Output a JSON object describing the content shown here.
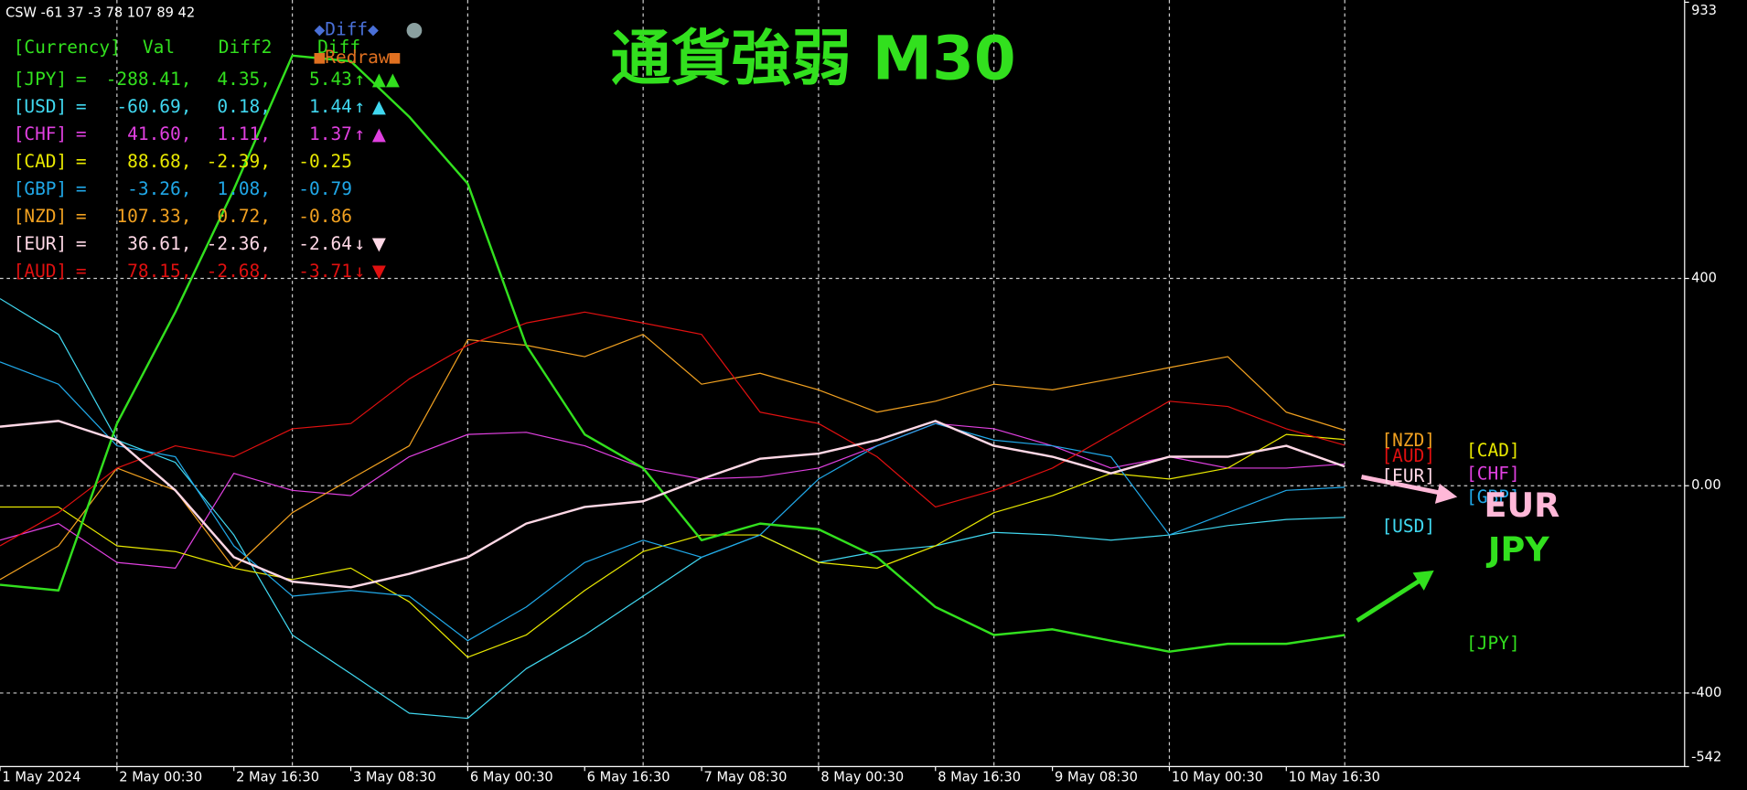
{
  "chart_data": {
    "type": "line",
    "title": "通貨強弱 M30",
    "x": [
      0,
      16,
      32,
      48,
      64,
      80,
      96,
      112,
      128,
      144,
      160,
      176,
      192,
      208,
      224,
      240,
      256,
      272,
      288,
      304,
      320,
      336,
      352,
      368
    ],
    "xlim": [
      0,
      461
    ],
    "xticks": [
      {
        "value": 0,
        "label": "1 May 2024"
      },
      {
        "value": 32,
        "label": "2 May 00:30"
      },
      {
        "value": 64,
        "label": "2 May 16:30"
      },
      {
        "value": 96,
        "label": "3 May 08:30"
      },
      {
        "value": 128,
        "label": "6 May 00:30"
      },
      {
        "value": 160,
        "label": "6 May 16:30"
      },
      {
        "value": 192,
        "label": "7 May 08:30"
      },
      {
        "value": 224,
        "label": "8 May 00:30"
      },
      {
        "value": 256,
        "label": "8 May 16:30"
      },
      {
        "value": 288,
        "label": "9 May 08:30"
      },
      {
        "value": 320,
        "label": "10 May 00:30"
      },
      {
        "value": 352,
        "label": "10 May 16:30"
      }
    ],
    "xgrid": [
      32,
      80,
      128,
      176,
      224,
      272,
      320,
      368
    ],
    "ylim": [
      -542,
      933
    ],
    "yticks": [
      933,
      400,
      {
        "value": 0,
        "label": "0.00"
      },
      -400,
      -542
    ],
    "grid": true,
    "series": [
      {
        "name": "[JPY]",
        "color": "#32e01e",
        "width": 2,
        "values": [
          -191,
          -202,
          120,
          335,
          572,
          830,
          819,
          712,
          583,
          271,
          99,
          34,
          -105,
          -73,
          -84,
          -138,
          -234,
          -288,
          -277,
          -299,
          -320,
          -305,
          -305,
          -288
        ]
      },
      {
        "name": "[USD]",
        "color": "#40d8f0",
        "width": 1,
        "values": [
          361,
          292,
          88,
          45,
          -95,
          -288,
          -363,
          -439,
          -449,
          -353,
          -288,
          -213,
          -138,
          -95,
          -148,
          -127,
          -116,
          -90,
          -95,
          -105,
          -95,
          -77,
          -65,
          -61
        ]
      },
      {
        "name": "[CHF]",
        "color": "#e040e0",
        "width": 1,
        "values": [
          -105,
          -73,
          -148,
          -159,
          24,
          -9,
          -19,
          56,
          99,
          103,
          77,
          34,
          13,
          17,
          34,
          77,
          120,
          110,
          77,
          34,
          56,
          34,
          34,
          42
        ]
      },
      {
        "name": "[CAD]",
        "color": "#e8e800",
        "width": 1,
        "values": [
          -41,
          -41,
          -116,
          -127,
          -159,
          -181,
          -159,
          -224,
          -331,
          -288,
          -202,
          -127,
          -95,
          -95,
          -148,
          -159,
          -116,
          -52,
          -19,
          24,
          13,
          34,
          99,
          89
        ]
      },
      {
        "name": "[GBP]",
        "color": "#20a8e8",
        "width": 1,
        "values": [
          239,
          196,
          77,
          56,
          -116,
          -213,
          -202,
          -213,
          -299,
          -234,
          -148,
          -105,
          -138,
          -95,
          13,
          77,
          120,
          88,
          77,
          56,
          -95,
          -52,
          -9,
          -3
        ]
      },
      {
        "name": "[NZD]",
        "color": "#f0a020",
        "width": 1,
        "values": [
          -181,
          -116,
          34,
          -9,
          -159,
          -52,
          13,
          77,
          282,
          271,
          249,
          292,
          196,
          217,
          185,
          142,
          163,
          196,
          185,
          206,
          228,
          249,
          142,
          107
        ]
      },
      {
        "name": "[EUR]",
        "color": "#ffd8e6",
        "width": 2,
        "values": [
          114,
          125,
          88,
          -9,
          -138,
          -185,
          -196,
          -170,
          -138,
          -73,
          -41,
          -30,
          13,
          52,
          62,
          88,
          125,
          77,
          56,
          24,
          56,
          56,
          77,
          37
        ]
      },
      {
        "name": "[AUD]",
        "color": "#e01010",
        "width": 1,
        "values": [
          -116,
          -52,
          34,
          77,
          56,
          110,
          120,
          206,
          271,
          314,
          335,
          314,
          292,
          142,
          120,
          56,
          -41,
          -9,
          34,
          99,
          163,
          153,
          110,
          78
        ]
      }
    ]
  },
  "panel": {
    "indicator": "CSW -61 37 -3 78 107 89 42",
    "header": {
      "currency": "[Currency]",
      "val": "Val",
      "diff2": "Diff2",
      "diff": "Diff",
      "color": "#32e01e"
    },
    "buttons": {
      "diff": "◆Diff◆",
      "diff_color": "#4a70d8",
      "dot": "●",
      "dot_color": "#8aa0a0",
      "redraw": "■Redraw■",
      "redraw_color": "#e07020"
    },
    "separator": "=",
    "rows": [
      {
        "currency": "[JPY]",
        "val": "-288.41,",
        "diff2": "4.35,",
        "diff": "5.43",
        "arrow": "↑",
        "signal": "▲▲",
        "color": "#32e01e"
      },
      {
        "currency": "[USD]",
        "val": "-60.69,",
        "diff2": "0.18,",
        "diff": "1.44",
        "arrow": "↑",
        "signal": "▲",
        "color": "#40d8f0"
      },
      {
        "currency": "[CHF]",
        "val": "41.60,",
        "diff2": "1.11,",
        "diff": "1.37",
        "arrow": "↑",
        "signal": "▲",
        "color": "#e040e0"
      },
      {
        "currency": "[CAD]",
        "val": "88.68,",
        "diff2": "-2.39,",
        "diff": "-0.25",
        "color": "#e8e800"
      },
      {
        "currency": "[GBP]",
        "val": "-3.26,",
        "diff2": "1.08,",
        "diff": "-0.79",
        "color": "#20a8e8"
      },
      {
        "currency": "[NZD]",
        "val": "107.33,",
        "diff2": "0.72,",
        "diff": "-0.86",
        "color": "#f0a020"
      },
      {
        "currency": "[EUR]",
        "val": "36.61,",
        "diff2": "-2.36,",
        "diff": "-2.64",
        "arrow": "↓",
        "signal": "▼",
        "color": "#ffd8e6"
      },
      {
        "currency": "[AUD]",
        "val": "78.15,",
        "diff2": "-2.68,",
        "diff": "-3.71",
        "arrow": "↓",
        "signal": "▼",
        "color": "#e01010"
      }
    ]
  },
  "annotations": [
    {
      "text": "EUR",
      "color": "#ffb8d8"
    },
    {
      "text": "JPY",
      "color": "#32e01e"
    }
  ]
}
